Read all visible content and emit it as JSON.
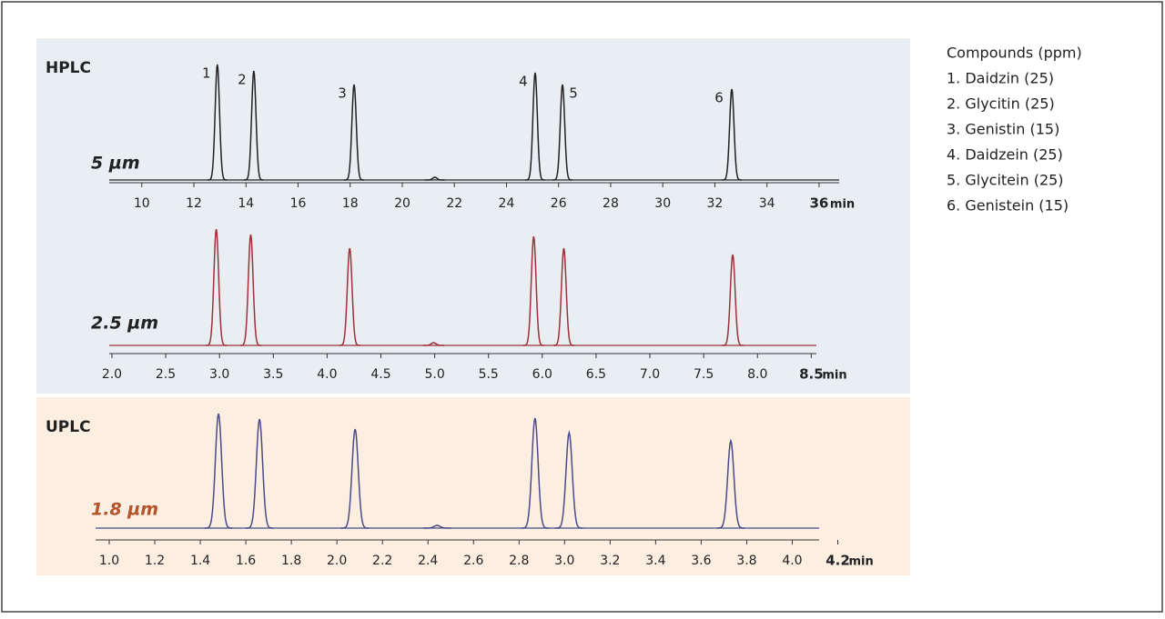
{
  "panels": [
    {
      "label": "HPLC"
    },
    {
      "label": "UPLC"
    }
  ],
  "legend": {
    "title": "Compounds (ppm)",
    "items": [
      "1. Daidzin (25)",
      "2. Glycitin (25)",
      "3. Genistin (15)",
      "4. Daidzein (25)",
      "5. Glycitein (25)",
      "6. Genistein (15)"
    ]
  },
  "chart_data": [
    {
      "type": "chromatogram",
      "subtitle": "5 µm",
      "x_unit": "min",
      "color": "#222222",
      "xlim": [
        8.75,
        37.4
      ],
      "xticks": [
        10,
        12,
        14,
        16,
        18,
        20,
        22,
        24,
        26,
        28,
        30,
        32,
        34,
        36
      ],
      "ylim": [
        0,
        130
      ],
      "peaks": {
        "x": [
          12.9,
          14.3,
          18.15,
          21.25,
          25.1,
          26.15,
          32.65
        ],
        "heights": [
          127,
          120,
          105,
          3,
          118,
          105,
          100
        ]
      },
      "peak_labels": [
        "1",
        "2",
        "3",
        null,
        "4",
        "5",
        "6"
      ]
    },
    {
      "type": "chromatogram",
      "subtitle": "2.5 µm",
      "x_unit": "min",
      "color": "#a0303a",
      "xlim": [
        1.975,
        8.7
      ],
      "xticks": [
        {
          "value": 2,
          "label": "2.0"
        },
        2.5,
        {
          "value": 3,
          "label": "3.0"
        },
        3.5,
        {
          "value": 4,
          "label": "4.0"
        },
        4.5,
        {
          "value": 5,
          "label": "5.0"
        },
        5.5,
        {
          "value": 6,
          "label": "6.0"
        },
        6.5,
        {
          "value": 7,
          "label": "7.0"
        },
        7.5,
        {
          "value": 8,
          "label": "8.0"
        },
        8.5
      ],
      "ylim": [
        0,
        130
      ],
      "peaks": {
        "x": [
          2.97,
          3.29,
          4.21,
          4.99,
          5.92,
          6.2,
          7.77
        ],
        "heights": [
          128,
          122,
          107,
          3,
          120,
          107,
          100
        ]
      }
    },
    {
      "type": "chromatogram",
      "subtitle": "1.8 µm",
      "x_unit": "min",
      "color": "#4a4a8a",
      "xlim": [
        0.94,
        4.19
      ],
      "xticks": [
        {
          "value": 1,
          "label": "1.0"
        },
        1.2,
        1.4,
        1.6,
        1.8,
        {
          "value": 2,
          "label": "2.0"
        },
        2.2,
        2.4,
        2.6,
        2.8,
        {
          "value": 3,
          "label": "3.0"
        },
        3.2,
        3.4,
        3.6,
        3.8,
        {
          "value": 4,
          "label": "4.0"
        },
        4.2
      ],
      "ylim": [
        0,
        130
      ],
      "peaks": {
        "x": [
          1.48,
          1.66,
          2.08,
          2.44,
          2.87,
          3.02,
          3.73
        ],
        "heights": [
          126,
          120,
          109,
          3,
          121,
          105,
          96
        ]
      }
    }
  ]
}
